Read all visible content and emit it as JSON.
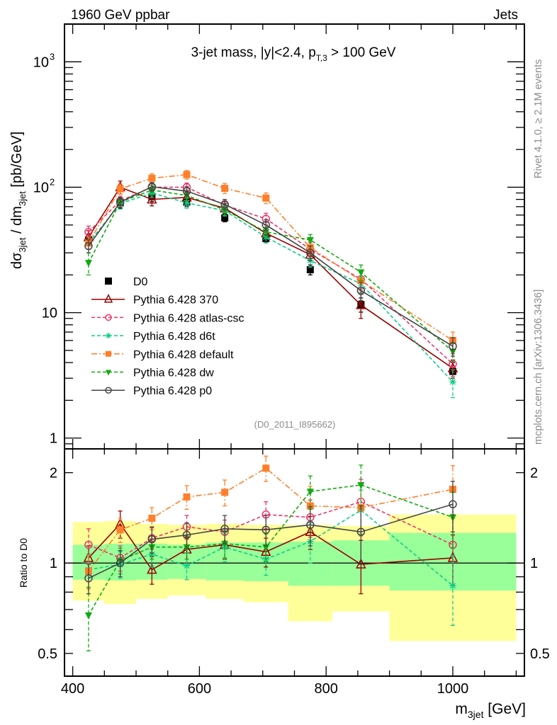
{
  "header": {
    "left_label": "1960 GeV ppbar",
    "right_label": "Jets"
  },
  "side_labels": {
    "rivet": "Rivet 4.1.0, ≥ 2.1M events",
    "mcplots": "mcplots.cern.ch [arXiv:1306.3436]"
  },
  "chart_data": [
    {
      "type": "line",
      "panel": "main",
      "title": "3-jet mass, |y|<2.4, p_T,3 > 100 GeV",
      "title_parts": {
        "main": "3-jet mass, |y|<2.4, p",
        "sub": "T,3",
        "tail": " > 100 GeV"
      },
      "ylabel": "dσ_3jet / dm_3jet [pb/GeV]",
      "ylabel_parts": {
        "a": "dσ",
        "a_sub": "3jet",
        "b": " / dm",
        "b_sub": "3jet",
        "c": " [pb/GeV]"
      },
      "xlabel": "m_3jet [GeV]",
      "yscale": "log",
      "xlim": [
        387,
        1113
      ],
      "ylim": [
        0.82,
        2000
      ],
      "yticks": [
        {
          "value": 1,
          "label": "1"
        },
        {
          "value": 10,
          "label": "10"
        },
        {
          "value": 100,
          "label": "10",
          "exp": "2"
        },
        {
          "value": 1000,
          "label": "10",
          "exp": "3"
        }
      ],
      "analysis_tag": "(D0_2011_I895662)",
      "legend_position": "lower-left",
      "x": [
        425,
        475,
        525,
        580,
        640,
        705,
        775,
        855,
        1000
      ],
      "series": [
        {
          "name": "D0",
          "legend": "D0",
          "color": "#000000",
          "marker": "square-filled",
          "line": "none",
          "values": [
            38,
            75,
            84,
            76,
            57,
            39,
            22,
            11.6,
            3.4
          ],
          "err": [
            4,
            7,
            7,
            6,
            4,
            3,
            2,
            1.5,
            0.6
          ]
        },
        {
          "name": "Pythia 6.428 370",
          "legend": "Pythia 6.428 370",
          "color": "#990000",
          "marker": "triangle-open",
          "line": "solid",
          "values": [
            40,
            100,
            80,
            83,
            68,
            43,
            29,
            11.5,
            3.6
          ],
          "err": [
            5,
            12,
            9,
            8,
            6,
            4,
            3,
            2.5,
            0.6
          ]
        },
        {
          "name": "Pythia 6.428 atlas-csc",
          "legend": "Pythia 6.428 atlas-csc",
          "color": "#ee3366",
          "marker": "circle-open",
          "line": "dashed",
          "values": [
            44,
            78,
            100,
            100,
            72,
            56,
            32,
            18.5,
            3.9
          ],
          "err": [
            5,
            7,
            8,
            8,
            6,
            6,
            4,
            3,
            0.8
          ]
        },
        {
          "name": "Pythia 6.428 d6t",
          "legend": "Pythia 6.428 d6t",
          "color": "#11cc88",
          "marker": "asterisk",
          "line": "dashed",
          "values": [
            36,
            74,
            90,
            75,
            65,
            40,
            26,
            17,
            2.8
          ],
          "err": [
            4,
            7,
            7,
            7,
            6,
            4,
            3,
            2.5,
            0.7
          ]
        },
        {
          "name": "Pythia 6.428 default",
          "legend": "Pythia 6.428 default",
          "color": "#ff7f2a",
          "marker": "square-filled",
          "line": "dashdot",
          "values": [
            36,
            97,
            118,
            126,
            98,
            82,
            33,
            18,
            6
          ],
          "err": [
            4,
            9,
            10,
            10,
            9,
            8,
            4,
            3,
            1
          ]
        },
        {
          "name": "Pythia 6.428 dw",
          "legend": "Pythia 6.428 dw",
          "color": "#11aa11",
          "marker": "triangle-down-filled",
          "line": "dashed",
          "values": [
            25,
            76,
            95,
            86,
            66,
            44,
            38,
            21,
            4.9
          ],
          "err": [
            5,
            7,
            8,
            7,
            6,
            4,
            4,
            3,
            0.8
          ]
        },
        {
          "name": "Pythia 6.428 p0",
          "legend": "Pythia 6.428 p0",
          "color": "#444444",
          "marker": "circle-open",
          "line": "solid",
          "values": [
            34,
            76,
            101,
            93,
            73,
            50,
            30,
            15,
            5.4
          ],
          "err": [
            4,
            7,
            8,
            8,
            7,
            5,
            4,
            2.5,
            0.9
          ]
        }
      ]
    },
    {
      "type": "line",
      "panel": "ratio",
      "ylabel": "Ratio to D0",
      "xlabel": "m_3jet [GeV]",
      "xlabel_parts": {
        "a": "m",
        "a_sub": "3jet",
        "b": " [GeV]"
      },
      "yscale": "log",
      "xlim": [
        387,
        1113
      ],
      "ylim": [
        0.42,
        2.4
      ],
      "xticks": [
        400,
        600,
        800,
        1000
      ],
      "yticks": [
        {
          "value": 0.5,
          "label": "0.5"
        },
        {
          "value": 1,
          "label": "1"
        },
        {
          "value": 2,
          "label": "2"
        }
      ],
      "reference_line": 1,
      "bands": {
        "edges": [
          400,
          450,
          500,
          550,
          610,
          670,
          740,
          810,
          900,
          1100
        ],
        "inner_color": "#99ff99",
        "outer_color": "#ffff99",
        "inner_lo": [
          0.88,
          0.875,
          0.88,
          0.885,
          0.875,
          0.87,
          0.84,
          0.84,
          0.81
        ],
        "inner_hi": [
          1.15,
          1.16,
          1.16,
          1.15,
          1.17,
          1.17,
          1.18,
          1.19,
          1.26
        ],
        "outer_lo": [
          0.75,
          0.73,
          0.76,
          0.78,
          0.76,
          0.74,
          0.64,
          0.69,
          0.55
        ],
        "outer_hi": [
          1.37,
          1.38,
          1.35,
          1.34,
          1.35,
          1.34,
          1.34,
          1.33,
          1.45
        ]
      },
      "x": [
        425,
        475,
        525,
        580,
        640,
        705,
        775,
        855,
        1000
      ],
      "series": [
        {
          "name": "Pythia 6.428 370",
          "color": "#990000",
          "marker": "triangle-open",
          "line": "solid",
          "values": [
            1.04,
            1.35,
            0.95,
            1.11,
            1.15,
            1.09,
            1.27,
            0.99,
            1.04
          ],
          "err": [
            0.1,
            0.14,
            0.1,
            0.11,
            0.12,
            0.12,
            0.16,
            0.2,
            0.2
          ]
        },
        {
          "name": "Pythia 6.428 atlas-csc",
          "color": "#ee3366",
          "marker": "circle-open",
          "line": "dashed",
          "values": [
            1.15,
            1.04,
            1.21,
            1.32,
            1.27,
            1.45,
            1.42,
            1.6,
            1.15
          ],
          "err": [
            0.15,
            0.1,
            0.1,
            0.12,
            0.12,
            0.15,
            0.2,
            0.3,
            0.3
          ]
        },
        {
          "name": "Pythia 6.428 d6t",
          "color": "#11cc88",
          "marker": "asterisk",
          "line": "dashed",
          "values": [
            0.95,
            0.99,
            1.07,
            0.98,
            1.13,
            1.03,
            1.18,
            1.5,
            0.84
          ],
          "err": [
            0.12,
            0.1,
            0.1,
            0.1,
            0.12,
            0.12,
            0.18,
            0.25,
            0.22
          ]
        },
        {
          "name": "Pythia 6.428 default",
          "color": "#ff7f2a",
          "marker": "square-filled",
          "line": "dashdot",
          "values": [
            0.94,
            1.29,
            1.41,
            1.66,
            1.72,
            2.07,
            1.55,
            1.53,
            1.76
          ],
          "err": [
            0.12,
            0.12,
            0.12,
            0.15,
            0.17,
            0.2,
            0.25,
            0.3,
            0.35
          ]
        },
        {
          "name": "Pythia 6.428 dw",
          "color": "#11aa11",
          "marker": "triangle-down-filled",
          "line": "dashed",
          "values": [
            0.67,
            1.02,
            1.13,
            1.13,
            1.16,
            1.13,
            1.73,
            1.82,
            1.42
          ],
          "err": [
            0.16,
            0.1,
            0.1,
            0.1,
            0.12,
            0.12,
            0.22,
            0.3,
            0.3
          ]
        },
        {
          "name": "Pythia 6.428 p0",
          "color": "#444444",
          "marker": "circle-open",
          "line": "solid",
          "values": [
            0.89,
            1.0,
            1.2,
            1.24,
            1.3,
            1.29,
            1.34,
            1.27,
            1.57
          ],
          "err": [
            0.1,
            0.1,
            0.12,
            0.12,
            0.14,
            0.15,
            0.2,
            0.28,
            0.3
          ]
        }
      ]
    }
  ]
}
